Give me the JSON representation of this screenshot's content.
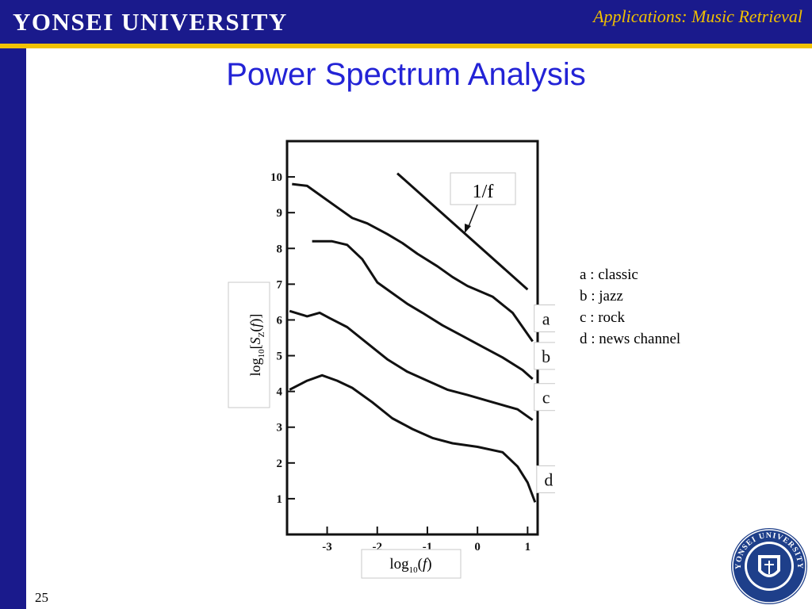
{
  "header": {
    "university": "YONSEI UNIVERSITY",
    "section": "Applications: Music Retrieval",
    "colors": {
      "band": "#1a1a8c",
      "accent": "#f2c200",
      "title": "#2323d6"
    }
  },
  "slide": {
    "title": "Power Spectrum Analysis",
    "number": "25"
  },
  "legend": [
    {
      "key": "a",
      "label": "a : classic"
    },
    {
      "key": "b",
      "label": "b : jazz"
    },
    {
      "key": "c",
      "label": "c : rock"
    },
    {
      "key": "d",
      "label": "d : news channel"
    }
  ],
  "chart_data": {
    "type": "line",
    "xlabel": "log10(f)",
    "ylabel": "log10[SZ(f)]",
    "xlim": [
      -3.8,
      1.2
    ],
    "ylim": [
      0,
      11
    ],
    "x_ticks": [
      "-3",
      "-2",
      "-1",
      "0",
      "1"
    ],
    "y_ticks": [
      "1",
      "2",
      "3",
      "4",
      "5",
      "6",
      "7",
      "8",
      "9",
      "10"
    ],
    "reference_line": {
      "label": "1/f",
      "points": [
        [
          -1.6,
          10.1
        ],
        [
          1.0,
          6.85
        ]
      ]
    },
    "series": [
      {
        "name": "a",
        "points": [
          [
            -3.7,
            9.8
          ],
          [
            -3.4,
            9.75
          ],
          [
            -3.1,
            9.45
          ],
          [
            -2.75,
            9.1
          ],
          [
            -2.5,
            8.85
          ],
          [
            -2.2,
            8.7
          ],
          [
            -1.8,
            8.4
          ],
          [
            -1.5,
            8.15
          ],
          [
            -1.2,
            7.85
          ],
          [
            -0.8,
            7.5
          ],
          [
            -0.5,
            7.2
          ],
          [
            -0.2,
            6.95
          ],
          [
            0.3,
            6.65
          ],
          [
            0.7,
            6.2
          ],
          [
            1.1,
            5.4
          ]
        ]
      },
      {
        "name": "b",
        "points": [
          [
            -3.3,
            8.2
          ],
          [
            -2.9,
            8.2
          ],
          [
            -2.6,
            8.1
          ],
          [
            -2.3,
            7.7
          ],
          [
            -2.0,
            7.05
          ],
          [
            -1.7,
            6.75
          ],
          [
            -1.4,
            6.45
          ],
          [
            -1.1,
            6.2
          ],
          [
            -0.7,
            5.85
          ],
          [
            -0.3,
            5.55
          ],
          [
            0.1,
            5.25
          ],
          [
            0.5,
            4.95
          ],
          [
            0.9,
            4.6
          ],
          [
            1.1,
            4.35
          ]
        ]
      },
      {
        "name": "c",
        "points": [
          [
            -3.75,
            6.25
          ],
          [
            -3.4,
            6.1
          ],
          [
            -3.15,
            6.2
          ],
          [
            -2.95,
            6.05
          ],
          [
            -2.6,
            5.8
          ],
          [
            -2.2,
            5.35
          ],
          [
            -1.8,
            4.9
          ],
          [
            -1.4,
            4.55
          ],
          [
            -1.0,
            4.3
          ],
          [
            -0.6,
            4.05
          ],
          [
            -0.2,
            3.9
          ],
          [
            0.3,
            3.7
          ],
          [
            0.8,
            3.5
          ],
          [
            1.1,
            3.2
          ]
        ]
      },
      {
        "name": "d",
        "points": [
          [
            -3.75,
            4.05
          ],
          [
            -3.4,
            4.3
          ],
          [
            -3.1,
            4.45
          ],
          [
            -2.8,
            4.3
          ],
          [
            -2.5,
            4.1
          ],
          [
            -2.1,
            3.7
          ],
          [
            -1.7,
            3.25
          ],
          [
            -1.3,
            2.95
          ],
          [
            -0.9,
            2.7
          ],
          [
            -0.5,
            2.55
          ],
          [
            0.0,
            2.45
          ],
          [
            0.5,
            2.3
          ],
          [
            0.8,
            1.9
          ],
          [
            1.0,
            1.45
          ],
          [
            1.15,
            0.9
          ]
        ]
      }
    ]
  }
}
